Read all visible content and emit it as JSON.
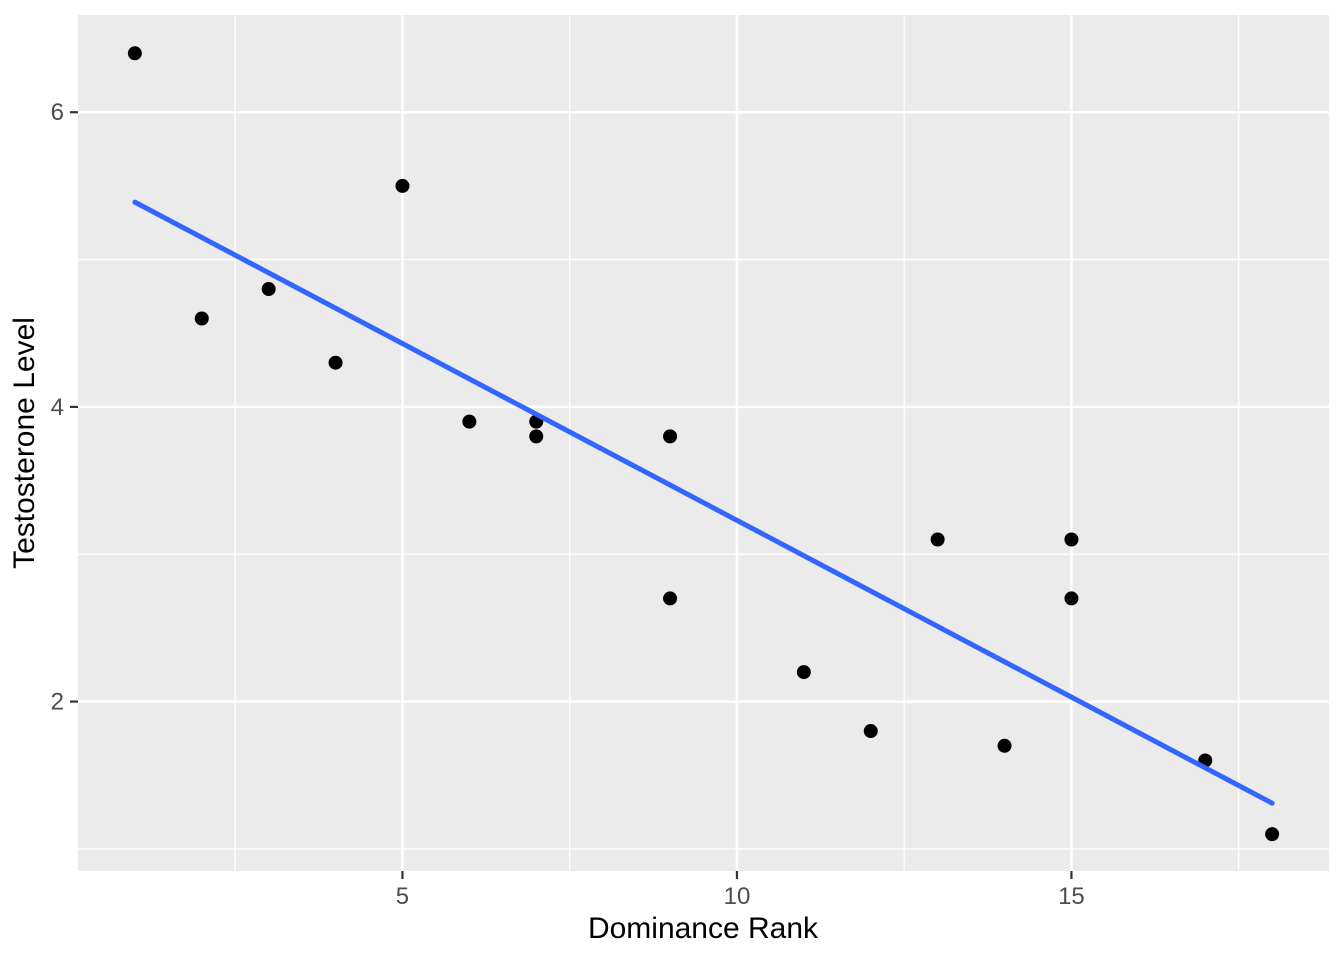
{
  "page": {
    "background_color": "#FFFFFF",
    "title": ""
  },
  "chart_data": {
    "type": "scatter",
    "title": "",
    "xlabel": "Dominance Rank",
    "ylabel": "Testosterone Level",
    "xlim": [
      0.15,
      18.85
    ],
    "ylim": [
      0.85,
      6.66
    ],
    "x_major_ticks": [
      5,
      10,
      15
    ],
    "y_major_ticks": [
      2,
      4,
      6
    ],
    "x_minor_gridlines": [
      2.5,
      7.5,
      12.5,
      17.5
    ],
    "y_minor_gridlines": [
      1,
      3,
      5
    ],
    "grid": "on",
    "legend": "none",
    "points": [
      [
        1,
        6.4
      ],
      [
        2,
        4.6
      ],
      [
        3,
        4.8
      ],
      [
        4,
        4.3
      ],
      [
        5,
        5.5
      ],
      [
        6,
        3.9
      ],
      [
        7,
        3.9
      ],
      [
        7,
        3.8
      ],
      [
        9,
        3.8
      ],
      [
        9,
        2.7
      ],
      [
        11,
        2.2
      ],
      [
        12,
        1.8
      ],
      [
        13,
        3.1
      ],
      [
        14,
        1.7
      ],
      [
        15,
        3.1
      ],
      [
        15,
        2.7
      ],
      [
        17,
        1.6
      ],
      [
        18,
        1.1
      ]
    ],
    "trend_line": {
      "fit": "linear",
      "x_start": 1,
      "y_start": 5.39,
      "x_end": 18,
      "y_end": 1.31
    },
    "style": {
      "panel_background": "#EBEBEB",
      "gridline_color": "#FFFFFF",
      "point_color": "#000000",
      "trend_line_color": "#3366FF",
      "tick_label_color": "#4D4D4D",
      "axis_title_color": "#000000",
      "tick_mark_color": "#333333"
    }
  }
}
